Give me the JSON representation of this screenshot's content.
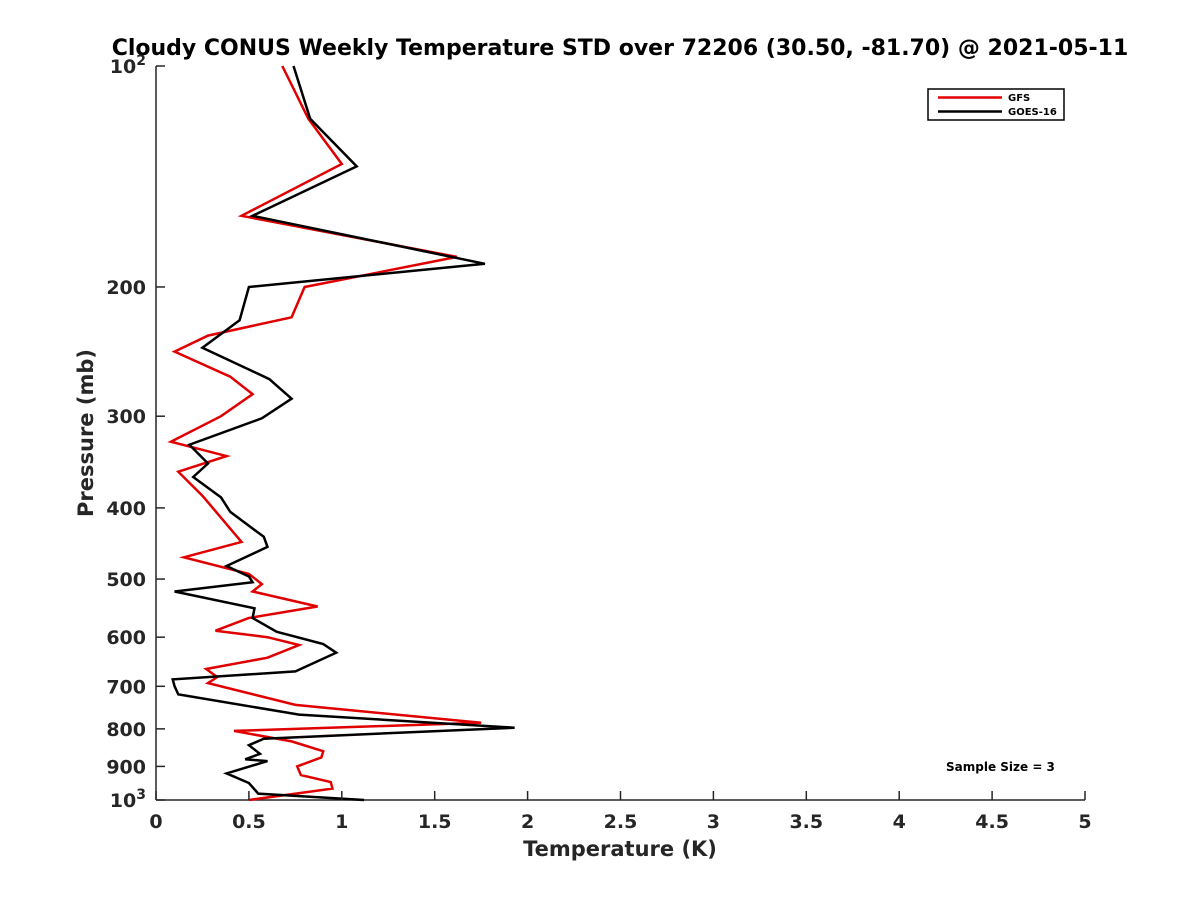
{
  "chart_data": {
    "type": "line",
    "title": "Cloudy CONUS Weekly Temperature STD over 72206 (30.50, -81.70) @ 2021-05-11",
    "xlabel": "Temperature (K)",
    "ylabel": "Pressure (mb)",
    "xlim": [
      0,
      5
    ],
    "ylim": [
      100,
      1000
    ],
    "y_scale": "log",
    "y_reversed": true,
    "grid": false,
    "legend_position": "top-right",
    "x_ticks": [
      {
        "value": 0,
        "label": "0"
      },
      {
        "value": 0.5,
        "label": "0.5"
      },
      {
        "value": 1,
        "label": "1"
      },
      {
        "value": 1.5,
        "label": "1.5"
      },
      {
        "value": 2,
        "label": "2"
      },
      {
        "value": 2.5,
        "label": "2.5"
      },
      {
        "value": 3,
        "label": "3"
      },
      {
        "value": 3.5,
        "label": "3.5"
      },
      {
        "value": 4,
        "label": "4"
      },
      {
        "value": 4.5,
        "label": "4.5"
      },
      {
        "value": 5,
        "label": "5"
      }
    ],
    "y_ticks": [
      {
        "value": 100,
        "label_base": "10",
        "label_exp": "2"
      },
      {
        "value": 200,
        "label": "200"
      },
      {
        "value": 300,
        "label": "300"
      },
      {
        "value": 400,
        "label": "400"
      },
      {
        "value": 500,
        "label": "500"
      },
      {
        "value": 600,
        "label": "600"
      },
      {
        "value": 700,
        "label": "700"
      },
      {
        "value": 800,
        "label": "800"
      },
      {
        "value": 900,
        "label": "900"
      },
      {
        "value": 1000,
        "label_base": "10",
        "label_exp": "3"
      }
    ],
    "annotation": "Sample Size = 3",
    "series": [
      {
        "name": "GFS",
        "color": "#e00000",
        "points": [
          [
            0.68,
            100
          ],
          [
            0.82,
            118
          ],
          [
            1.0,
            136
          ],
          [
            0.46,
            160
          ],
          [
            1.62,
            182
          ],
          [
            0.8,
            200
          ],
          [
            0.73,
            220
          ],
          [
            0.28,
            233
          ],
          [
            0.1,
            245
          ],
          [
            0.4,
            265
          ],
          [
            0.52,
            280
          ],
          [
            0.35,
            300
          ],
          [
            0.08,
            325
          ],
          [
            0.38,
            340
          ],
          [
            0.12,
            357
          ],
          [
            0.25,
            385
          ],
          [
            0.46,
            445
          ],
          [
            0.15,
            467
          ],
          [
            0.5,
            492
          ],
          [
            0.57,
            508
          ],
          [
            0.52,
            520
          ],
          [
            0.87,
            545
          ],
          [
            0.5,
            565
          ],
          [
            0.32,
            588
          ],
          [
            0.6,
            600
          ],
          [
            0.77,
            615
          ],
          [
            0.6,
            640
          ],
          [
            0.27,
            663
          ],
          [
            0.33,
            680
          ],
          [
            0.28,
            693
          ],
          [
            0.75,
            742
          ],
          [
            1.75,
            785
          ],
          [
            0.42,
            805
          ],
          [
            0.73,
            832
          ],
          [
            0.9,
            858
          ],
          [
            0.89,
            875
          ],
          [
            0.76,
            900
          ],
          [
            0.78,
            925
          ],
          [
            0.94,
            945
          ],
          [
            0.95,
            965
          ],
          [
            0.5,
            1000
          ]
        ]
      },
      {
        "name": "GOES-16",
        "color": "#000000",
        "points": [
          [
            0.74,
            100
          ],
          [
            0.83,
            118
          ],
          [
            1.08,
            137
          ],
          [
            0.52,
            160
          ],
          [
            1.77,
            186
          ],
          [
            0.5,
            200
          ],
          [
            0.45,
            222
          ],
          [
            0.25,
            242
          ],
          [
            0.61,
            267
          ],
          [
            0.73,
            284
          ],
          [
            0.57,
            302
          ],
          [
            0.18,
            328
          ],
          [
            0.28,
            348
          ],
          [
            0.2,
            363
          ],
          [
            0.35,
            387
          ],
          [
            0.4,
            405
          ],
          [
            0.58,
            438
          ],
          [
            0.6,
            452
          ],
          [
            0.38,
            480
          ],
          [
            0.5,
            496
          ],
          [
            0.52,
            505
          ],
          [
            0.1,
            520
          ],
          [
            0.53,
            548
          ],
          [
            0.52,
            565
          ],
          [
            0.65,
            590
          ],
          [
            0.9,
            613
          ],
          [
            0.97,
            630
          ],
          [
            0.75,
            668
          ],
          [
            0.09,
            685
          ],
          [
            0.1,
            700
          ],
          [
            0.12,
            718
          ],
          [
            0.77,
            765
          ],
          [
            1.93,
            797
          ],
          [
            0.58,
            825
          ],
          [
            0.5,
            842
          ],
          [
            0.56,
            865
          ],
          [
            0.48,
            880
          ],
          [
            0.6,
            885
          ],
          [
            0.38,
            920
          ],
          [
            0.5,
            948
          ],
          [
            0.55,
            980
          ],
          [
            1.12,
            1000
          ]
        ]
      }
    ]
  }
}
